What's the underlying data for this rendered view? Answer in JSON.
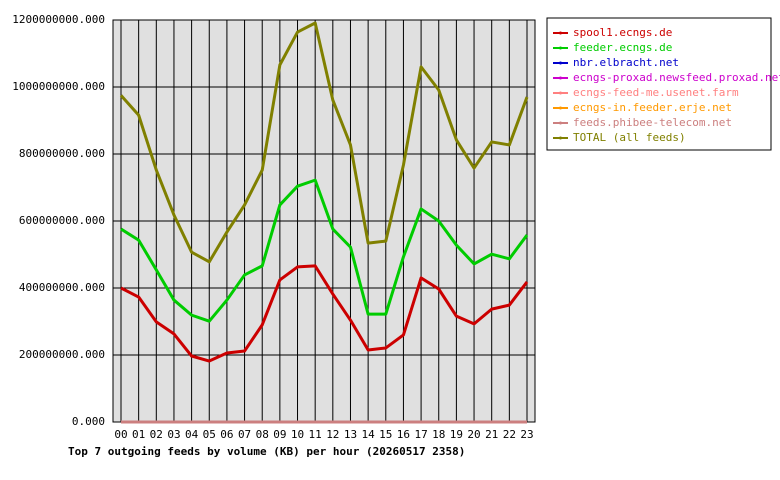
{
  "chart_data": {
    "type": "line",
    "title": "Top 7 outgoing feeds by volume (KB) per hour (20260517 2358)",
    "categories": [
      "00",
      "01",
      "02",
      "03",
      "04",
      "05",
      "06",
      "07",
      "08",
      "09",
      "10",
      "11",
      "12",
      "13",
      "14",
      "15",
      "16",
      "17",
      "18",
      "19",
      "20",
      "21",
      "22",
      "23"
    ],
    "ylim": [
      0,
      1200000000
    ],
    "yticks": [
      {
        "value": 0,
        "label": "0.000"
      },
      {
        "value": 200000000,
        "label": "200000000.000"
      },
      {
        "value": 400000000,
        "label": "400000000.000"
      },
      {
        "value": 600000000,
        "label": "600000000.000"
      },
      {
        "value": 800000000,
        "label": "800000000.000"
      },
      {
        "value": 1000000000,
        "label": "1000000000.000"
      },
      {
        "value": 1200000000,
        "label": "1200000000.000"
      }
    ],
    "grid": true,
    "series": [
      {
        "name": "spool1.ecngs.de",
        "color": "#cc0000",
        "values": [
          400000000,
          373000000,
          299000000,
          263000000,
          197000000,
          182000000,
          206000000,
          212000000,
          290000000,
          424000000,
          463000000,
          466000000,
          382000000,
          304000000,
          215000000,
          221000000,
          260000000,
          430000000,
          397000000,
          316000000,
          293000000,
          337000000,
          349000000,
          418000000
        ]
      },
      {
        "name": "feeder.ecngs.de",
        "color": "#00cc00",
        "values": [
          576000000,
          543000000,
          454000000,
          364000000,
          319000000,
          301000000,
          364000000,
          439000000,
          466000000,
          648000000,
          704000000,
          722000000,
          576000000,
          522000000,
          322000000,
          322000000,
          493000000,
          636000000,
          600000000,
          528000000,
          472000000,
          501000000,
          487000000,
          558000000
        ]
      },
      {
        "name": "nbr.elbracht.net",
        "color": "#0000cc",
        "values": [
          0,
          0,
          0,
          0,
          0,
          0,
          0,
          0,
          0,
          0,
          0,
          0,
          0,
          0,
          0,
          0,
          0,
          0,
          0,
          0,
          0,
          0,
          0,
          0
        ]
      },
      {
        "name": "ecngs-proxad.newsfeed.proxad.net",
        "color": "#cc00cc",
        "values": [
          0,
          0,
          0,
          0,
          0,
          0,
          0,
          0,
          0,
          0,
          0,
          0,
          0,
          0,
          0,
          0,
          0,
          0,
          0,
          0,
          0,
          0,
          0,
          0
        ]
      },
      {
        "name": "ecngs-feed-me.usenet.farm",
        "color": "#ff8080",
        "values": [
          0,
          0,
          0,
          0,
          0,
          0,
          0,
          0,
          0,
          0,
          0,
          0,
          0,
          0,
          0,
          0,
          0,
          0,
          0,
          0,
          0,
          0,
          0,
          0
        ]
      },
      {
        "name": "ecngs-in.feeder.erje.net",
        "color": "#ff9900",
        "values": [
          0,
          0,
          0,
          0,
          0,
          0,
          0,
          0,
          0,
          0,
          0,
          0,
          0,
          0,
          0,
          0,
          0,
          0,
          0,
          0,
          0,
          0,
          0,
          0
        ]
      },
      {
        "name": "feeds.phibee-telecom.net",
        "color": "#cc7f7f",
        "values": [
          0,
          0,
          0,
          0,
          0,
          0,
          0,
          0,
          0,
          0,
          0,
          0,
          0,
          0,
          0,
          0,
          0,
          0,
          0,
          0,
          0,
          0,
          0,
          0
        ]
      },
      {
        "name": "TOTAL (all feeds)",
        "color": "#808000",
        "values": [
          975000000,
          916000000,
          752000000,
          618000000,
          507000000,
          478000000,
          567000000,
          648000000,
          752000000,
          1066000000,
          1164000000,
          1191000000,
          961000000,
          827000000,
          534000000,
          540000000,
          767000000,
          1060000000,
          991000000,
          842000000,
          758000000,
          836000000,
          827000000,
          970000000
        ]
      }
    ]
  }
}
